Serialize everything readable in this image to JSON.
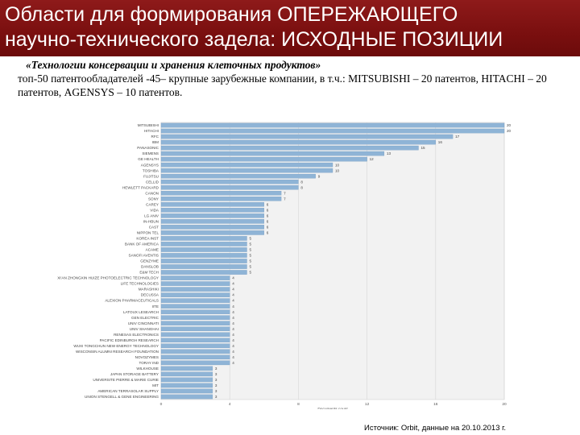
{
  "title": {
    "line1": "Области для формирования ОПЕРЕЖАЮЩЕГО",
    "line2": "научно-технического задела: ИСХОДНЫЕ ПОЗИЦИИ"
  },
  "subtitle": {
    "heading": "«Технологии консервации и хранения клеточных продуктов»",
    "body": "топ-50 патентообладателей -45– крупные зарубежные компании, в т.ч.: MITSUBISHI – 20 патентов, HITACHI – 20 патентов, AGENSYS – 10 патентов."
  },
  "source": "Источник: Orbit, данные на 20.10.2013 г.",
  "colors": {
    "banner": "#7a0f0f",
    "bar": "#8fb4d6",
    "plot_bg": "#f2f2f2"
  },
  "chart_data": {
    "type": "bar",
    "orientation": "horizontal",
    "xlabel": "Documents count",
    "xlim": [
      0,
      20
    ],
    "xticks": [
      "0",
      "4",
      "8",
      "12",
      "16",
      "20"
    ],
    "grid": true,
    "categories": [
      "MITSUBISHI",
      "HITACHI",
      "RFC",
      "IBM",
      "PANASONIC",
      "SIEMENS",
      "GE HEALTH",
      "AGENSYS",
      "TOSHIBA",
      "FUJITSU",
      "CELLID",
      "HEWLETT PACKARD",
      "CANON",
      "SONY",
      "CAREY",
      "VIDA",
      "LG ANIV",
      "IN-HBUN",
      "CAST",
      "NIPPON TEL",
      "KOREA INST",
      "BANK OF AMERICA",
      "ACAME",
      "SANOFI AVENTIS",
      "GENZYME",
      "DANSLOB",
      "E&M TECH",
      "XI'AN ZHONGXIN HUIZE PHOTOELECTRIC TECHNOLOGY",
      "LIFE TECHNOLOGIES",
      "MARASHIKI",
      "DECUSSA",
      "ALEXION PHARMACEUTICALS",
      "IITE",
      "LATOUX LESEARCH",
      "GEN ELECTRIC",
      "UNIV CINCINNATI",
      "UNIV SHANGHAI",
      "RENESAS ELECTRONICS",
      "PACIFIC EDINBURGH RESEARCH",
      "WUXI TONGCHUN NEW ENERGY TECHNOLOGY",
      "WISCONSIN ALUMNI RESEARCH FOUNDATION",
      "NOVOZYMES",
      "TORAY IND",
      "WILKHOUSE",
      "JAPAN STORAGE BATTERY",
      "UNIVERSITE PIERRE & MARIE CURIE",
      "MIT",
      "AMERICAN TERRASOLAR SUPPLY",
      "UNION STENGELL & GENE ENGINEERING"
    ],
    "values": [
      20,
      20,
      17,
      16,
      15,
      13,
      12,
      10,
      10,
      9,
      8,
      8,
      7,
      7,
      6,
      6,
      6,
      6,
      6,
      6,
      5,
      5,
      5,
      5,
      5,
      5,
      5,
      4,
      4,
      4,
      4,
      4,
      4,
      4,
      4,
      4,
      4,
      4,
      4,
      4,
      4,
      4,
      4,
      3,
      3,
      3,
      3,
      3,
      3
    ]
  }
}
